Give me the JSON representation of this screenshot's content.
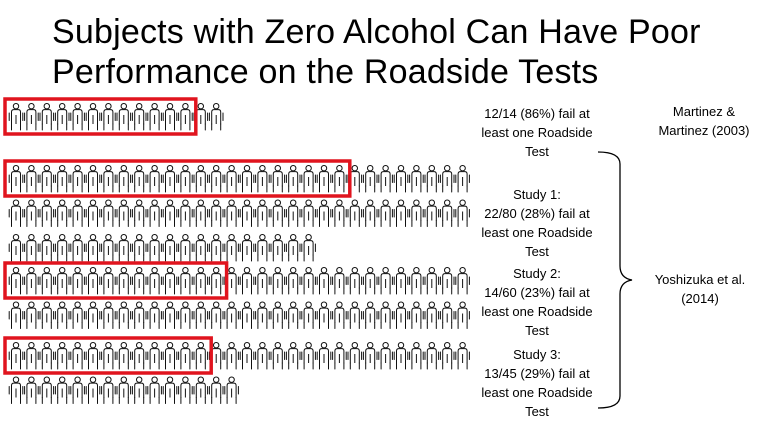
{
  "slide": {
    "title_line1": "Subjects with Zero Alcohol Can Have Poor",
    "title_line2": "Performance on the Roadside Tests"
  },
  "studies": [
    {
      "text": "12/14 (86%) fail at\nleast one Roadside\nTest",
      "failed": 12,
      "total": 14
    },
    {
      "text": "Study 1:\n22/80 (28%) fail at\nleast one Roadside\nTest",
      "failed": 22,
      "total": 80
    },
    {
      "text": "Study 2:\n14/60 (23%) fail at\nleast one Roadside\nTest",
      "failed": 14,
      "total": 60
    },
    {
      "text": "Study 3:\n13/45 (29%) fail at\nleast one Roadside\nTest",
      "failed": 13,
      "total": 45
    }
  ],
  "sources": {
    "martinez": "Martinez &\nMartinez (2003)",
    "yoshizuka": "Yoshizuka et al.\n(2014)"
  },
  "colors": {
    "highlight": "#e0141e",
    "figure_stroke": "#111111",
    "bracket": "#000000"
  },
  "icons": {
    "person": "person-icon"
  }
}
